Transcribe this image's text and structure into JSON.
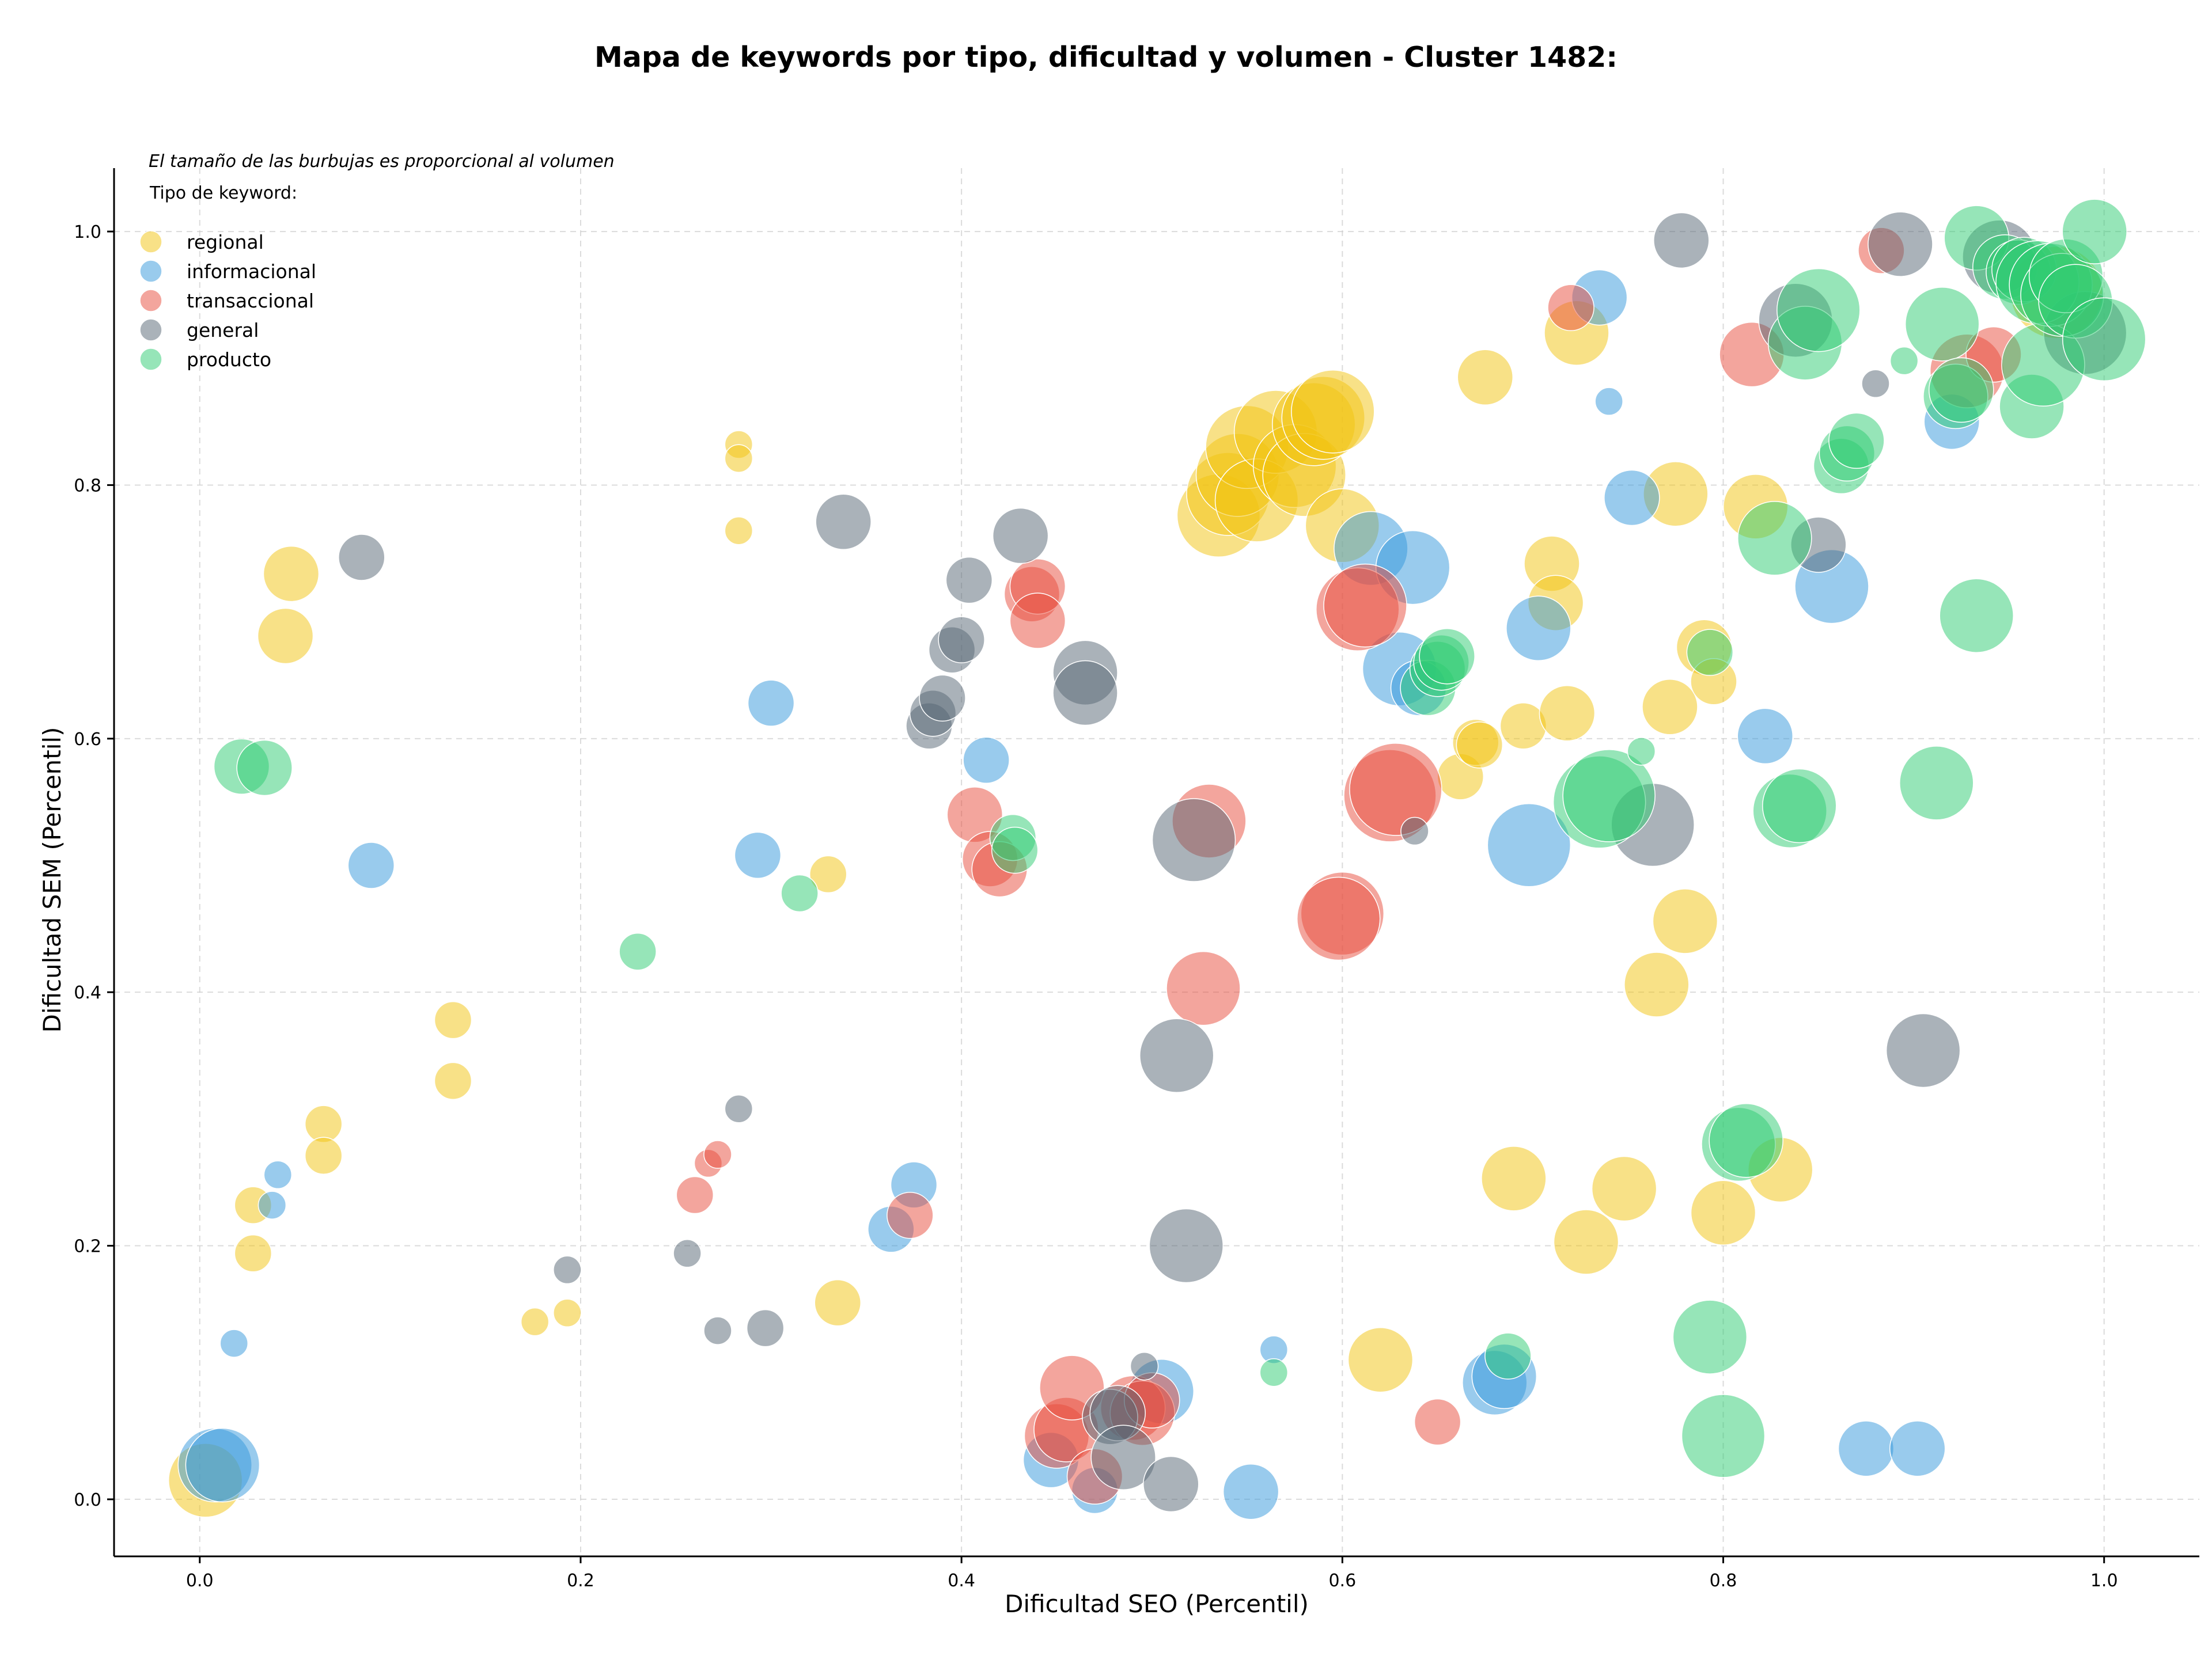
{
  "chart_data": {
    "type": "scatter",
    "title": "Mapa de keywords por tipo, dificultad y volumen - Cluster 1482:",
    "xlabel": "Dificultad SEO (Percentil)",
    "ylabel": "Dificultad SEM (Percentil)",
    "xlim": [
      -0.045,
      1.05
    ],
    "ylim": [
      -0.045,
      1.05
    ],
    "xticks": [
      0.0,
      0.2,
      0.4,
      0.6,
      0.8,
      1.0
    ],
    "yticks": [
      0.0,
      0.2,
      0.4,
      0.6,
      0.8,
      1.0
    ],
    "tick_labels_x": [
      "0.0",
      "0.2",
      "0.4",
      "0.6",
      "0.8",
      "1.0"
    ],
    "tick_labels_y": [
      "0.0",
      "0.2",
      "0.4",
      "0.6",
      "0.8",
      "1.0"
    ],
    "grid": true,
    "note": "El tamaño de las burbujas es proporcional al volumen",
    "legend_title": "Tipo de keyword:",
    "legend_position": "top-left",
    "series": [
      {
        "name": "regional",
        "color": "#F1C40F",
        "points": [
          [
            0.003,
            0.015,
            4
          ],
          [
            0.028,
            0.232,
            2
          ],
          [
            0.028,
            0.194,
            2
          ],
          [
            0.045,
            0.681,
            3
          ],
          [
            0.048,
            0.73,
            3
          ],
          [
            0.065,
            0.296,
            2
          ],
          [
            0.065,
            0.271,
            2
          ],
          [
            0.133,
            0.378,
            2
          ],
          [
            0.133,
            0.33,
            2
          ],
          [
            0.176,
            0.14,
            1.5
          ],
          [
            0.193,
            0.147,
            1.5
          ],
          [
            0.283,
            0.832,
            1.5
          ],
          [
            0.283,
            0.821,
            1.5
          ],
          [
            0.283,
            0.764,
            1.5
          ],
          [
            0.33,
            0.493,
            2
          ],
          [
            0.335,
            0.155,
            2.5
          ],
          [
            0.535,
            0.776,
            4.5
          ],
          [
            0.54,
            0.793,
            4.5
          ],
          [
            0.545,
            0.808,
            4.5
          ],
          [
            0.55,
            0.83,
            4.5
          ],
          [
            0.555,
            0.788,
            4.5
          ],
          [
            0.565,
            0.842,
            4.5
          ],
          [
            0.575,
            0.815,
            4.5
          ],
          [
            0.58,
            0.808,
            4.5
          ],
          [
            0.585,
            0.848,
            4.5
          ],
          [
            0.59,
            0.853,
            4.5
          ],
          [
            0.595,
            0.858,
            4.5
          ],
          [
            0.6,
            0.768,
            4
          ],
          [
            0.62,
            0.11,
            3.5
          ],
          [
            0.662,
            0.57,
            2.5
          ],
          [
            0.67,
            0.597,
            2.5
          ],
          [
            0.672,
            0.595,
            2.5
          ],
          [
            0.675,
            0.885,
            3
          ],
          [
            0.69,
            0.253,
            3.5
          ],
          [
            0.695,
            0.61,
            2.5
          ],
          [
            0.71,
            0.738,
            3
          ],
          [
            0.712,
            0.707,
            3
          ],
          [
            0.718,
            0.62,
            3
          ],
          [
            0.723,
            0.92,
            3.5
          ],
          [
            0.728,
            0.203,
            3.5
          ],
          [
            0.748,
            0.245,
            3.5
          ],
          [
            0.765,
            0.406,
            3.5
          ],
          [
            0.772,
            0.625,
            3
          ],
          [
            0.775,
            0.793,
            3.5
          ],
          [
            0.78,
            0.456,
            3.5
          ],
          [
            0.79,
            0.672,
            3
          ],
          [
            0.795,
            0.645,
            2.5
          ],
          [
            0.8,
            0.226,
            3.5
          ],
          [
            0.817,
            0.783,
            3.5
          ],
          [
            0.83,
            0.26,
            3.5
          ],
          [
            0.975,
            0.952,
            5
          ]
        ]
      },
      {
        "name": "informacional",
        "color": "#3498DB",
        "points": [
          [
            0.008,
            0.027,
            4
          ],
          [
            0.012,
            0.027,
            4
          ],
          [
            0.018,
            0.123,
            1.5
          ],
          [
            0.038,
            0.232,
            1.5
          ],
          [
            0.041,
            0.256,
            1.5
          ],
          [
            0.09,
            0.5,
            2.5
          ],
          [
            0.293,
            0.508,
            2.5
          ],
          [
            0.3,
            0.628,
            2.5
          ],
          [
            0.375,
            0.248,
            2.5
          ],
          [
            0.363,
            0.213,
            2.5
          ],
          [
            0.413,
            0.583,
            2.5
          ],
          [
            0.447,
            0.031,
            3
          ],
          [
            0.47,
            0.007,
            2.5
          ],
          [
            0.505,
            0.085,
            3.5
          ],
          [
            0.552,
            0.006,
            3
          ],
          [
            0.564,
            0.118,
            1.5
          ],
          [
            0.615,
            0.75,
            4
          ],
          [
            0.63,
            0.655,
            4
          ],
          [
            0.637,
            0.735,
            4
          ],
          [
            0.64,
            0.64,
            3
          ],
          [
            0.68,
            0.092,
            3.5
          ],
          [
            0.685,
            0.097,
            3.5
          ],
          [
            0.698,
            0.516,
            4.5
          ],
          [
            0.703,
            0.687,
            3.5
          ],
          [
            0.735,
            0.948,
            3
          ],
          [
            0.74,
            0.866,
            1.5
          ],
          [
            0.752,
            0.79,
            3
          ],
          [
            0.822,
            0.602,
            3
          ],
          [
            0.857,
            0.72,
            4
          ],
          [
            0.875,
            0.04,
            3
          ],
          [
            0.902,
            0.04,
            3
          ],
          [
            0.92,
            0.85,
            3
          ]
        ]
      },
      {
        "name": "transaccional",
        "color": "#E74C3C",
        "points": [
          [
            0.26,
            0.24,
            2
          ],
          [
            0.267,
            0.265,
            1.5
          ],
          [
            0.272,
            0.272,
            1.5
          ],
          [
            0.373,
            0.224,
            2.5
          ],
          [
            0.407,
            0.54,
            3
          ],
          [
            0.415,
            0.505,
            3
          ],
          [
            0.42,
            0.497,
            3
          ],
          [
            0.437,
            0.714,
            3
          ],
          [
            0.44,
            0.72,
            3
          ],
          [
            0.44,
            0.693,
            3
          ],
          [
            0.45,
            0.05,
            3.5
          ],
          [
            0.455,
            0.055,
            3.5
          ],
          [
            0.458,
            0.088,
            3.5
          ],
          [
            0.47,
            0.018,
            3
          ],
          [
            0.49,
            0.072,
            3.5
          ],
          [
            0.495,
            0.068,
            3.5
          ],
          [
            0.5,
            0.078,
            3
          ],
          [
            0.527,
            0.403,
            4
          ],
          [
            0.53,
            0.535,
            4
          ],
          [
            0.6,
            0.462,
            4.5
          ],
          [
            0.598,
            0.458,
            4.5
          ],
          [
            0.608,
            0.702,
            4.5
          ],
          [
            0.612,
            0.705,
            4.5
          ],
          [
            0.625,
            0.555,
            5
          ],
          [
            0.628,
            0.56,
            5
          ],
          [
            0.65,
            0.061,
            2.5
          ],
          [
            0.815,
            0.903,
            3.5
          ],
          [
            0.72,
            0.94,
            2.5
          ],
          [
            0.883,
            0.985,
            2.5
          ],
          [
            0.928,
            0.89,
            4
          ],
          [
            0.942,
            0.903,
            3
          ]
        ]
      },
      {
        "name": "general",
        "color": "#566573",
        "points": [
          [
            0.085,
            0.743,
            2.5
          ],
          [
            0.193,
            0.181,
            1.5
          ],
          [
            0.256,
            0.194,
            1.5
          ],
          [
            0.283,
            0.308,
            1.5
          ],
          [
            0.272,
            0.133,
            1.5
          ],
          [
            0.297,
            0.135,
            2
          ],
          [
            0.338,
            0.771,
            3
          ],
          [
            0.383,
            0.61,
            2.5
          ],
          [
            0.385,
            0.62,
            2.5
          ],
          [
            0.39,
            0.632,
            2.5
          ],
          [
            0.395,
            0.67,
            2.5
          ],
          [
            0.4,
            0.678,
            2.5
          ],
          [
            0.404,
            0.725,
            2.5
          ],
          [
            0.431,
            0.76,
            3
          ],
          [
            0.465,
            0.652,
            3.5
          ],
          [
            0.465,
            0.636,
            3.5
          ],
          [
            0.478,
            0.065,
            3
          ],
          [
            0.482,
            0.068,
            3
          ],
          [
            0.485,
            0.033,
            3.5
          ],
          [
            0.496,
            0.105,
            1.5
          ],
          [
            0.51,
            0.012,
            3
          ],
          [
            0.513,
            0.35,
            4
          ],
          [
            0.518,
            0.2,
            4
          ],
          [
            0.522,
            0.52,
            4.5
          ],
          [
            0.638,
            0.527,
            1.5
          ],
          [
            0.763,
            0.532,
            4.5
          ],
          [
            0.778,
            0.993,
            3
          ],
          [
            0.838,
            0.93,
            4
          ],
          [
            0.85,
            0.753,
            3
          ],
          [
            0.88,
            0.88,
            1.5
          ],
          [
            0.893,
            0.99,
            3.5
          ],
          [
            0.905,
            0.354,
            4
          ],
          [
            0.945,
            0.98,
            4
          ],
          [
            0.99,
            0.92,
            4.5
          ]
        ]
      },
      {
        "name": "producto",
        "color": "#2ECC71",
        "points": [
          [
            0.022,
            0.578,
            3
          ],
          [
            0.034,
            0.577,
            3
          ],
          [
            0.23,
            0.432,
            2
          ],
          [
            0.315,
            0.478,
            2
          ],
          [
            0.427,
            0.522,
            2.5
          ],
          [
            0.428,
            0.512,
            2.5
          ],
          [
            0.564,
            0.1,
            1.5
          ],
          [
            0.645,
            0.64,
            3
          ],
          [
            0.65,
            0.655,
            3
          ],
          [
            0.652,
            0.66,
            3
          ],
          [
            0.655,
            0.665,
            3
          ],
          [
            0.687,
            0.113,
            2.5
          ],
          [
            0.735,
            0.55,
            5
          ],
          [
            0.74,
            0.555,
            5
          ],
          [
            0.757,
            0.59,
            1.5
          ],
          [
            0.793,
            0.128,
            4
          ],
          [
            0.793,
            0.668,
            2.5
          ],
          [
            0.8,
            0.05,
            4.5
          ],
          [
            0.808,
            0.28,
            4
          ],
          [
            0.812,
            0.283,
            4
          ],
          [
            0.827,
            0.758,
            4
          ],
          [
            0.835,
            0.543,
            4
          ],
          [
            0.84,
            0.547,
            4
          ],
          [
            0.843,
            0.912,
            4
          ],
          [
            0.85,
            0.938,
            4.5
          ],
          [
            0.862,
            0.815,
            3
          ],
          [
            0.865,
            0.825,
            3
          ],
          [
            0.87,
            0.835,
            3
          ],
          [
            0.895,
            0.898,
            1.5
          ],
          [
            0.912,
            0.565,
            4
          ],
          [
            0.915,
            0.927,
            4
          ],
          [
            0.922,
            0.87,
            3.5
          ],
          [
            0.925,
            0.875,
            3.5
          ],
          [
            0.933,
            0.697,
            4
          ],
          [
            0.933,
            0.995,
            3.5
          ],
          [
            0.948,
            0.972,
            3.5
          ],
          [
            0.955,
            0.968,
            3.5
          ],
          [
            0.958,
            0.97,
            3.5
          ],
          [
            0.962,
            0.862,
            3.5
          ],
          [
            0.965,
            0.96,
            4.5
          ],
          [
            0.968,
            0.895,
            4.5
          ],
          [
            0.972,
            0.958,
            4.5
          ],
          [
            0.978,
            0.95,
            4.5
          ],
          [
            0.98,
            0.965,
            4
          ],
          [
            0.985,
            0.945,
            4
          ],
          [
            0.995,
            1.0,
            3.5
          ],
          [
            1.0,
            0.915,
            4.5
          ]
        ]
      }
    ]
  }
}
